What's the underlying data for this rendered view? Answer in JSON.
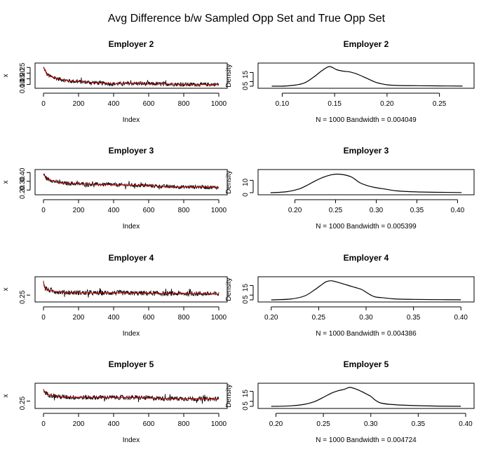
{
  "figure": {
    "title": "Avg Difference b/w Sampled Opp Set and True Opp Set"
  },
  "colors": {
    "trace": "#000000",
    "running_mean": "#cc0000",
    "density": "#000000"
  },
  "chart_data": [
    {
      "type": "line",
      "title": "Employer 2",
      "xlabel": "Index",
      "ylabel": "x",
      "xlim": [
        0,
        1000
      ],
      "ylim": [
        0.085,
        0.27
      ],
      "xticks": [
        "0",
        "200",
        "400",
        "600",
        "800",
        "1000"
      ],
      "xtick_values": [
        0,
        200,
        400,
        600,
        800,
        1000
      ],
      "yticks": [
        "0.10",
        "0.15",
        "0.20",
        "0.25"
      ],
      "ytick_values": [
        0.1,
        0.15,
        0.2,
        0.25
      ],
      "series": [
        {
          "role": "trace",
          "x": [
            0,
            20,
            40,
            80,
            150,
            250,
            350,
            400,
            500,
            600,
            700,
            800,
            900,
            1000
          ],
          "y": [
            0.25,
            0.19,
            0.17,
            0.15,
            0.13,
            0.12,
            0.11,
            0.105,
            0.11,
            0.105,
            0.105,
            0.1,
            0.1,
            0.1
          ],
          "noise": 0.018
        },
        {
          "role": "running_mean",
          "x": [
            0,
            20,
            40,
            80,
            150,
            250,
            350,
            400,
            500,
            600,
            700,
            800,
            900,
            1000
          ],
          "y": [
            0.25,
            0.19,
            0.17,
            0.15,
            0.13,
            0.12,
            0.11,
            0.105,
            0.11,
            0.105,
            0.105,
            0.1,
            0.1,
            0.1
          ]
        }
      ]
    },
    {
      "type": "line",
      "title": "Employer 2",
      "xlabel": "N = 1000   Bandwidth = 0.004049",
      "ylabel": "Density",
      "xlim": [
        0.085,
        0.275
      ],
      "ylim": [
        0,
        23
      ],
      "xticks": [
        "0.10",
        "0.15",
        "0.20",
        "0.25"
      ],
      "xtick_values": [
        0.1,
        0.15,
        0.2,
        0.25
      ],
      "yticks": [
        "0",
        "5",
        "15"
      ],
      "ytick_values": [
        0,
        5,
        15
      ],
      "series": [
        {
          "role": "density",
          "x": [
            0.09,
            0.105,
            0.12,
            0.13,
            0.138,
            0.145,
            0.152,
            0.158,
            0.165,
            0.172,
            0.18,
            0.19,
            0.2,
            0.21,
            0.23,
            0.25,
            0.272
          ],
          "y": [
            0,
            0.3,
            3,
            10,
            17,
            21.5,
            18,
            16.5,
            15.5,
            13,
            9,
            4,
            1.5,
            0.8,
            0.5,
            0.3,
            0.1
          ]
        }
      ]
    },
    {
      "type": "line",
      "title": "Employer 3",
      "xlabel": "Index",
      "ylabel": "x",
      "xlim": [
        0,
        1000
      ],
      "ylim": [
        0.17,
        0.41
      ],
      "xticks": [
        "0",
        "200",
        "400",
        "600",
        "800",
        "1000"
      ],
      "xtick_values": [
        0,
        200,
        400,
        600,
        800,
        1000
      ],
      "yticks": [
        "0.20",
        "0.30",
        "0.40"
      ],
      "ytick_values": [
        0.2,
        0.3,
        0.4
      ],
      "series": [
        {
          "role": "trace",
          "x": [
            0,
            20,
            60,
            100,
            200,
            300,
            400,
            500,
            600,
            700,
            800,
            900,
            1000
          ],
          "y": [
            0.38,
            0.33,
            0.3,
            0.28,
            0.27,
            0.265,
            0.26,
            0.255,
            0.25,
            0.24,
            0.235,
            0.235,
            0.23
          ],
          "noise": 0.022
        },
        {
          "role": "running_mean",
          "x": [
            0,
            20,
            60,
            100,
            200,
            300,
            400,
            500,
            600,
            700,
            800,
            900,
            1000
          ],
          "y": [
            0.38,
            0.33,
            0.3,
            0.28,
            0.27,
            0.265,
            0.26,
            0.255,
            0.25,
            0.24,
            0.235,
            0.235,
            0.23
          ]
        }
      ]
    },
    {
      "type": "line",
      "title": "Employer 3",
      "xlabel": "N = 1000   Bandwidth = 0.005399",
      "ylabel": "Density",
      "xlim": [
        0.165,
        0.41
      ],
      "ylim": [
        0,
        17
      ],
      "xticks": [
        "0.20",
        "0.25",
        "0.30",
        "0.35",
        "0.40"
      ],
      "xtick_values": [
        0.2,
        0.25,
        0.3,
        0.35,
        0.4
      ],
      "yticks": [
        "0",
        "10"
      ],
      "ytick_values": [
        0,
        10
      ],
      "series": [
        {
          "role": "density",
          "x": [
            0.17,
            0.19,
            0.205,
            0.215,
            0.225,
            0.235,
            0.245,
            0.252,
            0.26,
            0.27,
            0.28,
            0.29,
            0.3,
            0.31,
            0.325,
            0.35,
            0.38,
            0.405
          ],
          "y": [
            0,
            0.8,
            3,
            6,
            9.5,
            12.5,
            14.5,
            15,
            14.5,
            12.5,
            8,
            5.5,
            4,
            3,
            1.5,
            0.6,
            0.3,
            0.1
          ]
        }
      ]
    },
    {
      "type": "line",
      "title": "Employer 4",
      "xlabel": "Index",
      "ylabel": "x",
      "xlim": [
        0,
        1000
      ],
      "ylim": [
        0.2,
        0.42
      ],
      "xticks": [
        "0",
        "200",
        "400",
        "600",
        "800",
        "1000"
      ],
      "xtick_values": [
        0,
        200,
        400,
        600,
        800,
        1000
      ],
      "yticks": [
        "0.25"
      ],
      "ytick_values": [
        0.25
      ],
      "series": [
        {
          "role": "trace",
          "x": [
            0,
            10,
            30,
            60,
            100,
            200,
            300,
            400,
            500,
            600,
            700,
            800,
            900,
            1000
          ],
          "y": [
            0.38,
            0.32,
            0.3,
            0.29,
            0.28,
            0.275,
            0.27,
            0.275,
            0.27,
            0.27,
            0.265,
            0.265,
            0.265,
            0.26
          ],
          "noise": 0.025
        },
        {
          "role": "running_mean",
          "x": [
            0,
            10,
            30,
            60,
            100,
            200,
            300,
            400,
            500,
            600,
            700,
            800,
            900,
            1000
          ],
          "y": [
            0.38,
            0.32,
            0.3,
            0.29,
            0.28,
            0.275,
            0.27,
            0.275,
            0.27,
            0.27,
            0.265,
            0.265,
            0.265,
            0.26
          ]
        }
      ]
    },
    {
      "type": "line",
      "title": "Employer 4",
      "xlabel": "N = 1000   Bandwidth = 0.004386",
      "ylabel": "Density",
      "xlim": [
        0.195,
        0.405
      ],
      "ylim": [
        0,
        22
      ],
      "xticks": [
        "0.20",
        "0.25",
        "0.30",
        "0.35",
        "0.40"
      ],
      "xtick_values": [
        0.2,
        0.25,
        0.3,
        0.35,
        0.4
      ],
      "yticks": [
        "0",
        "5",
        "15"
      ],
      "ytick_values": [
        0,
        5,
        15
      ],
      "series": [
        {
          "role": "density",
          "x": [
            0.2,
            0.22,
            0.235,
            0.245,
            0.252,
            0.258,
            0.263,
            0.268,
            0.275,
            0.285,
            0.295,
            0.3,
            0.305,
            0.31,
            0.32,
            0.33,
            0.35,
            0.38,
            0.4
          ],
          "y": [
            0,
            0.8,
            4,
            10,
            15,
            19,
            20,
            19,
            17,
            14,
            11,
            8,
            5,
            3,
            2,
            1,
            0.5,
            0.2,
            0.1
          ]
        }
      ]
    },
    {
      "type": "line",
      "title": "Employer 5",
      "xlabel": "Index",
      "ylabel": "x",
      "xlim": [
        0,
        1000
      ],
      "ylim": [
        0.2,
        0.4
      ],
      "xticks": [
        "0",
        "200",
        "400",
        "600",
        "800",
        "1000"
      ],
      "xtick_values": [
        0,
        200,
        400,
        600,
        800,
        1000
      ],
      "yticks": [
        "0.25"
      ],
      "ytick_values": [
        0.25
      ],
      "series": [
        {
          "role": "trace",
          "x": [
            0,
            10,
            30,
            60,
            100,
            200,
            300,
            400,
            500,
            600,
            700,
            800,
            900,
            1000
          ],
          "y": [
            0.36,
            0.33,
            0.31,
            0.3,
            0.29,
            0.285,
            0.285,
            0.285,
            0.285,
            0.28,
            0.275,
            0.275,
            0.27,
            0.27
          ],
          "noise": 0.022
        },
        {
          "role": "running_mean",
          "x": [
            0,
            10,
            30,
            60,
            100,
            200,
            300,
            400,
            500,
            600,
            700,
            800,
            900,
            1000
          ],
          "y": [
            0.36,
            0.33,
            0.31,
            0.3,
            0.29,
            0.285,
            0.285,
            0.285,
            0.285,
            0.28,
            0.275,
            0.275,
            0.27,
            0.27
          ]
        }
      ]
    },
    {
      "type": "line",
      "title": "Employer 5",
      "xlabel": "N = 1000   Bandwidth = 0.004724",
      "ylabel": "Density",
      "xlim": [
        0.19,
        0.4
      ],
      "ylim": [
        0,
        21
      ],
      "xticks": [
        "0.20",
        "0.25",
        "0.30",
        "0.35",
        "0.40"
      ],
      "xtick_values": [
        0.2,
        0.25,
        0.3,
        0.35,
        0.4
      ],
      "yticks": [
        "0",
        "5",
        "15"
      ],
      "ytick_values": [
        0,
        5,
        15
      ],
      "series": [
        {
          "role": "density",
          "x": [
            0.195,
            0.215,
            0.23,
            0.24,
            0.25,
            0.258,
            0.265,
            0.272,
            0.278,
            0.285,
            0.29,
            0.295,
            0.3,
            0.305,
            0.31,
            0.32,
            0.34,
            0.37,
            0.395
          ],
          "y": [
            0,
            0.5,
            2,
            4.5,
            9,
            13,
            15.5,
            17,
            19,
            17,
            15,
            12.5,
            10,
            6,
            3.5,
            2,
            1,
            0.3,
            0.1
          ]
        }
      ]
    }
  ]
}
